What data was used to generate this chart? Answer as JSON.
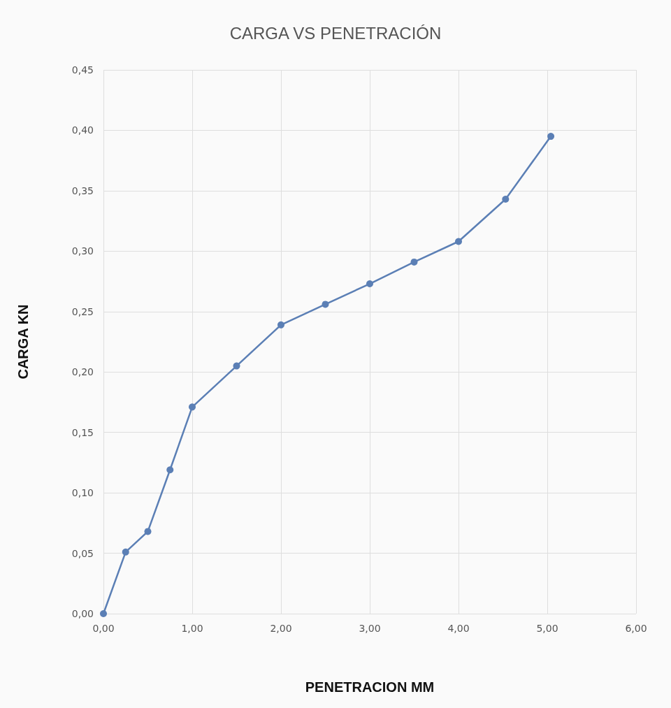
{
  "chart_data": {
    "type": "line",
    "title": "CARGA VS PENETRACIÓN",
    "xlabel": "PENETRACION MM",
    "ylabel": "CARGA KN",
    "x": [
      0,
      0.25,
      0.5,
      0.75,
      1.0,
      1.5,
      2.0,
      2.5,
      3.0,
      3.5,
      4.0,
      4.53,
      5.04
    ],
    "series": [
      {
        "color": "#5b7fb5",
        "values": [
          0,
          0.051,
          0.068,
          0.119,
          0.171,
          0.205,
          0.239,
          0.256,
          0.273,
          0.291,
          0.308,
          0.343,
          0.395
        ]
      }
    ],
    "xlim": [
      0,
      6
    ],
    "xticks": [
      {
        "value": 0,
        "label": "0,00"
      },
      {
        "value": 1,
        "label": "1,00"
      },
      {
        "value": 2,
        "label": "2,00"
      },
      {
        "value": 3,
        "label": "3,00"
      },
      {
        "value": 4,
        "label": "4,00"
      },
      {
        "value": 5,
        "label": "5,00"
      },
      {
        "value": 6,
        "label": "6,00"
      }
    ],
    "ylim": [
      0,
      0.45
    ],
    "yticks": [
      {
        "value": 0,
        "label": "0,00"
      },
      {
        "value": 0.05,
        "label": "0,05"
      },
      {
        "value": 0.1,
        "label": "0,10"
      },
      {
        "value": 0.15,
        "label": "0,15"
      },
      {
        "value": 0.2,
        "label": "0,20"
      },
      {
        "value": 0.25,
        "label": "0,25"
      },
      {
        "value": 0.3,
        "label": "0,30"
      },
      {
        "value": 0.35,
        "label": "0,35"
      },
      {
        "value": 0.4,
        "label": "0,40"
      },
      {
        "value": 0.45,
        "label": "0,45"
      }
    ],
    "grid": true,
    "marker": "circle",
    "line_style": "solid"
  }
}
